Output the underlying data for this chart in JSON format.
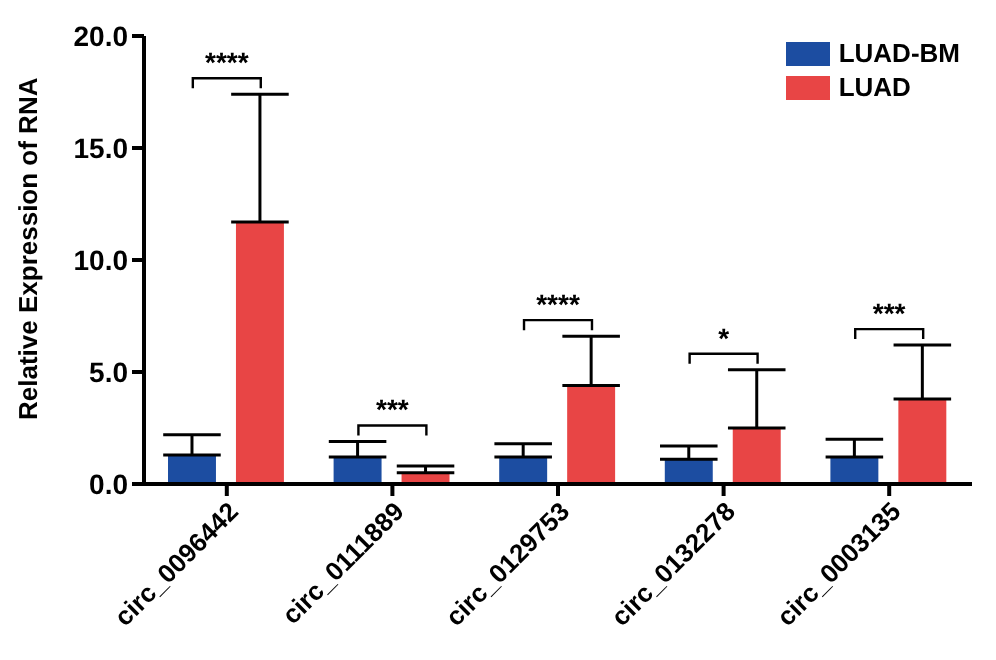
{
  "chart_data": {
    "type": "bar",
    "ylabel": "Relative Expression of RNA",
    "categories": [
      "circ_0096442",
      "circ_0111889",
      "circ_0129753",
      "circ_0132278",
      "circ_0003135"
    ],
    "series": [
      {
        "name": "LUAD-BM",
        "color": "#1c4da1",
        "values": [
          1.3,
          1.2,
          1.2,
          1.1,
          1.2
        ],
        "errors": [
          [
            1.3,
            2.2
          ],
          [
            1.2,
            1.9
          ],
          [
            1.2,
            1.8
          ],
          [
            1.1,
            1.7
          ],
          [
            1.2,
            2.0
          ]
        ]
      },
      {
        "name": "LUAD",
        "color": "#e84545",
        "values": [
          11.7,
          0.5,
          4.4,
          2.5,
          3.8
        ],
        "errors": [
          [
            11.7,
            17.4
          ],
          [
            0.5,
            0.8
          ],
          [
            4.4,
            6.6
          ],
          [
            2.5,
            5.1
          ],
          [
            3.8,
            6.2
          ]
        ]
      }
    ],
    "ylim": [
      0,
      20
    ],
    "yticks": [
      {
        "value": 0,
        "label": "0.0"
      },
      {
        "value": 5,
        "label": "5.0"
      },
      {
        "value": 10,
        "label": "10.0"
      },
      {
        "value": 15,
        "label": "15.0"
      },
      {
        "value": 20,
        "label": "20.0"
      }
    ],
    "annotations": [
      "****",
      "***",
      "****",
      "*",
      "***"
    ],
    "grid": false,
    "legend": "top right"
  }
}
